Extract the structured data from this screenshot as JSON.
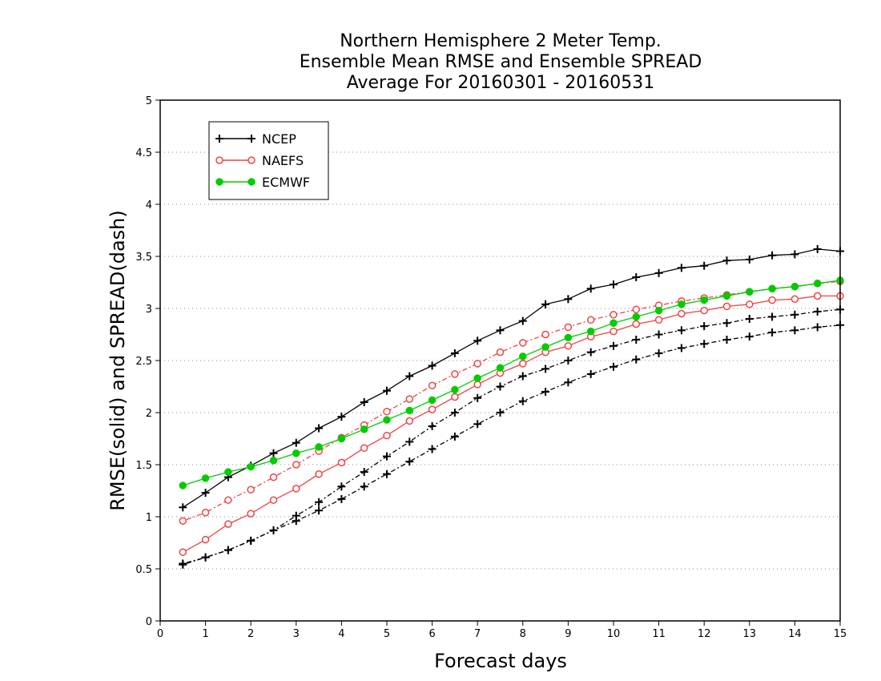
{
  "chart_data": {
    "type": "line",
    "title": [
      "Northern Hemisphere 2 Meter Temp.",
      "Ensemble Mean RMSE and Ensemble SPREAD",
      "Average For 20160301 - 20160531"
    ],
    "xlabel": "Forecast days",
    "ylabel": "RMSE(solid) and SPREAD(dash)",
    "xlim": [
      0,
      15
    ],
    "ylim": [
      0,
      5
    ],
    "xticks": [
      "0",
      "1",
      "2",
      "3",
      "4",
      "5",
      "6",
      "7",
      "8",
      "9",
      "10",
      "11",
      "12",
      "13",
      "14",
      "15"
    ],
    "yticks": [
      "0",
      "0.5",
      "1",
      "1.5",
      "2",
      "2.5",
      "3",
      "3.5",
      "4",
      "4.5",
      "5"
    ],
    "grid": true,
    "legend_position": "top-left",
    "x": [
      0.5,
      1,
      1.5,
      2,
      2.5,
      3,
      3.5,
      4,
      4.5,
      5,
      5.5,
      6,
      6.5,
      7,
      7.5,
      8,
      8.5,
      9,
      9.5,
      10,
      10.5,
      11,
      11.5,
      12,
      12.5,
      13,
      13.5,
      14,
      14.5,
      15
    ],
    "series": [
      {
        "name": "NCEP",
        "metric": "RMSE",
        "style": "solid",
        "marker": "plus",
        "color": "#000000",
        "values": [
          1.09,
          1.23,
          1.38,
          1.49,
          1.61,
          1.71,
          1.85,
          1.96,
          2.1,
          2.21,
          2.35,
          2.45,
          2.57,
          2.69,
          2.79,
          2.88,
          3.04,
          3.09,
          3.19,
          3.23,
          3.3,
          3.34,
          3.39,
          3.41,
          3.46,
          3.47,
          3.51,
          3.52,
          3.57,
          3.55
        ]
      },
      {
        "name": "NCEP",
        "metric": "SPREAD",
        "style": "dash",
        "marker": "plus",
        "color": "#000000",
        "values": [
          0.55,
          0.61,
          0.68,
          0.77,
          0.87,
          0.96,
          1.06,
          1.17,
          1.29,
          1.41,
          1.53,
          1.65,
          1.77,
          1.89,
          2.0,
          2.11,
          2.2,
          2.29,
          2.37,
          2.44,
          2.51,
          2.57,
          2.62,
          2.66,
          2.7,
          2.73,
          2.77,
          2.79,
          2.82,
          2.84
        ]
      },
      {
        "name": "NCEP",
        "metric": "SPREAD_black_dotted",
        "style": "dash",
        "marker": "plus",
        "color": "#000000",
        "values": [
          0.54,
          0.61,
          0.68,
          0.77,
          0.87,
          1.01,
          1.14,
          1.29,
          1.43,
          1.58,
          1.72,
          1.87,
          2.0,
          2.14,
          2.25,
          2.35,
          2.42,
          2.5,
          2.58,
          2.64,
          2.7,
          2.75,
          2.79,
          2.83,
          2.86,
          2.9,
          2.92,
          2.94,
          2.97,
          2.99
        ]
      },
      {
        "name": "NAEFS",
        "metric": "RMSE",
        "style": "solid",
        "marker": "open-circle",
        "color": "#ee4444",
        "values": [
          0.66,
          0.78,
          0.93,
          1.03,
          1.16,
          1.27,
          1.41,
          1.52,
          1.66,
          1.78,
          1.92,
          2.03,
          2.15,
          2.27,
          2.38,
          2.47,
          2.58,
          2.64,
          2.73,
          2.78,
          2.85,
          2.89,
          2.95,
          2.98,
          3.02,
          3.04,
          3.08,
          3.09,
          3.12,
          3.12
        ]
      },
      {
        "name": "NAEFS",
        "metric": "SPREAD",
        "style": "dash",
        "marker": "open-circle",
        "color": "#ee4444",
        "values": [
          0.96,
          1.04,
          1.16,
          1.26,
          1.38,
          1.5,
          1.63,
          1.76,
          1.88,
          2.01,
          2.13,
          2.26,
          2.37,
          2.47,
          2.58,
          2.67,
          2.75,
          2.82,
          2.89,
          2.94,
          2.99,
          3.03,
          3.07,
          3.1,
          3.13,
          3.16,
          3.19,
          3.21,
          3.24,
          3.26
        ]
      },
      {
        "name": "ECMWF",
        "metric": "RMSE",
        "style": "solid",
        "marker": "filled-circle",
        "color": "#00cc00",
        "values": [
          1.3,
          1.37,
          1.43,
          1.48,
          1.54,
          1.61,
          1.67,
          1.75,
          1.84,
          1.93,
          2.02,
          2.12,
          2.22,
          2.33,
          2.43,
          2.54,
          2.63,
          2.72,
          2.78,
          2.86,
          2.92,
          2.98,
          3.04,
          3.08,
          3.12,
          3.16,
          3.19,
          3.21,
          3.24,
          3.27
        ]
      }
    ]
  }
}
